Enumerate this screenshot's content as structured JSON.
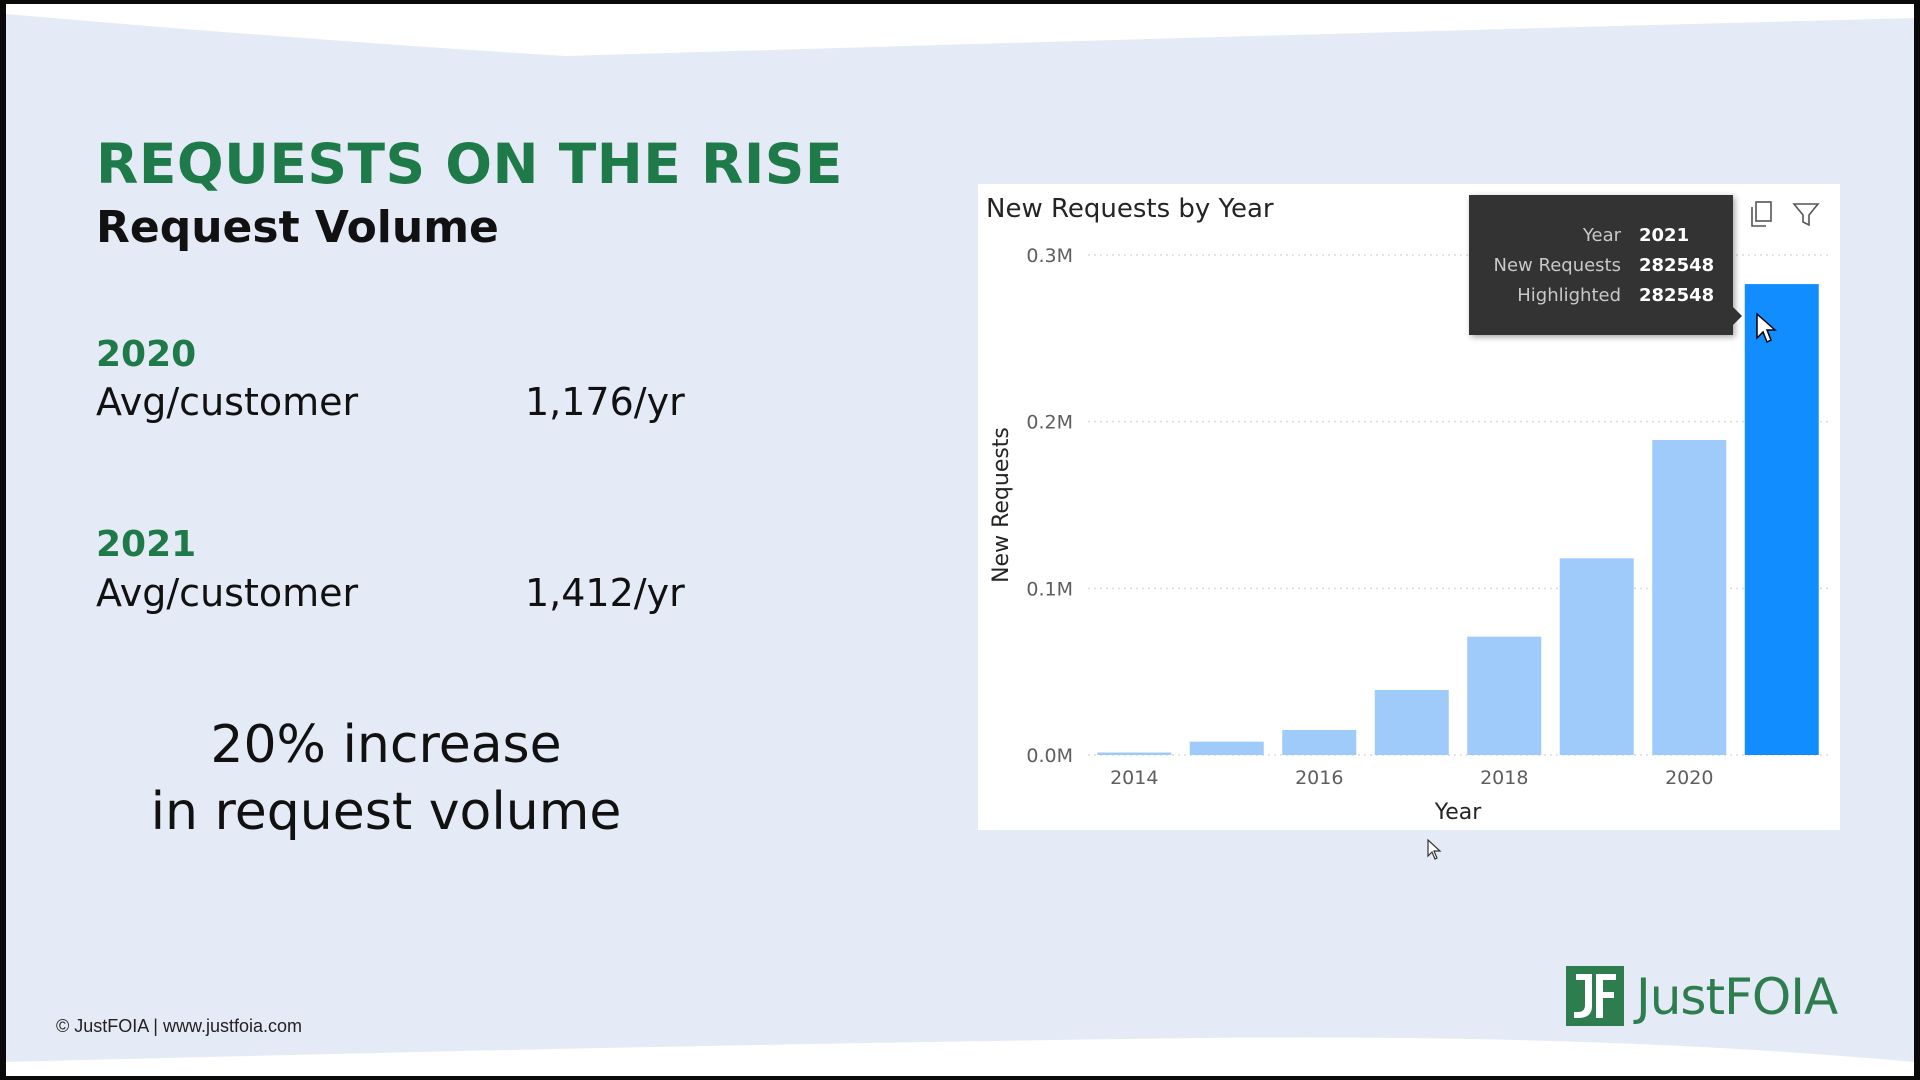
{
  "slide": {
    "title": "REQUESTS ON THE RISE",
    "subtitle": "Request Volume",
    "stats": [
      {
        "year": "2020",
        "label": "Avg/customer",
        "value": "1,176/yr"
      },
      {
        "year": "2021",
        "label": "Avg/customer",
        "value": "1,412/yr"
      }
    ],
    "increase_line1": "20% increase",
    "increase_line2": "in request volume",
    "footer": "© JustFOIA | www.justfoia.com",
    "logo_text": "JustFOIA",
    "logo_mark": "JF"
  },
  "colors": {
    "title_green": "#1f7a4a",
    "logo_green": "#2e7d4f",
    "bar_light": "#9fcbfa",
    "bar_highlight": "#118dff",
    "background": "#e5ebf6"
  },
  "tooltip": {
    "rows": [
      {
        "key": "Year",
        "value": "2021"
      },
      {
        "key": "New Requests",
        "value": "282548"
      },
      {
        "key": "Highlighted",
        "value": "282548"
      }
    ]
  },
  "icons": [
    "copy-icon",
    "filter-icon",
    "cursor-icon"
  ],
  "chart_data": {
    "type": "bar",
    "title": "New Requests by Year",
    "xlabel": "Year",
    "ylabel": "New Requests",
    "categories": [
      2014,
      2015,
      2016,
      2017,
      2018,
      2019,
      2020,
      2021
    ],
    "x_tick_labels": [
      "2014",
      "2016",
      "2018",
      "2020"
    ],
    "values": [
      1500,
      8000,
      15000,
      39000,
      71000,
      118000,
      189000,
      282548
    ],
    "highlighted_category": 2021,
    "ylim": [
      0,
      300000
    ],
    "y_ticks": [
      0,
      100000,
      200000,
      300000
    ],
    "y_tick_labels": [
      "0.0M",
      "0.1M",
      "0.2M",
      "0.3M"
    ],
    "grid": true,
    "legend": "none"
  }
}
